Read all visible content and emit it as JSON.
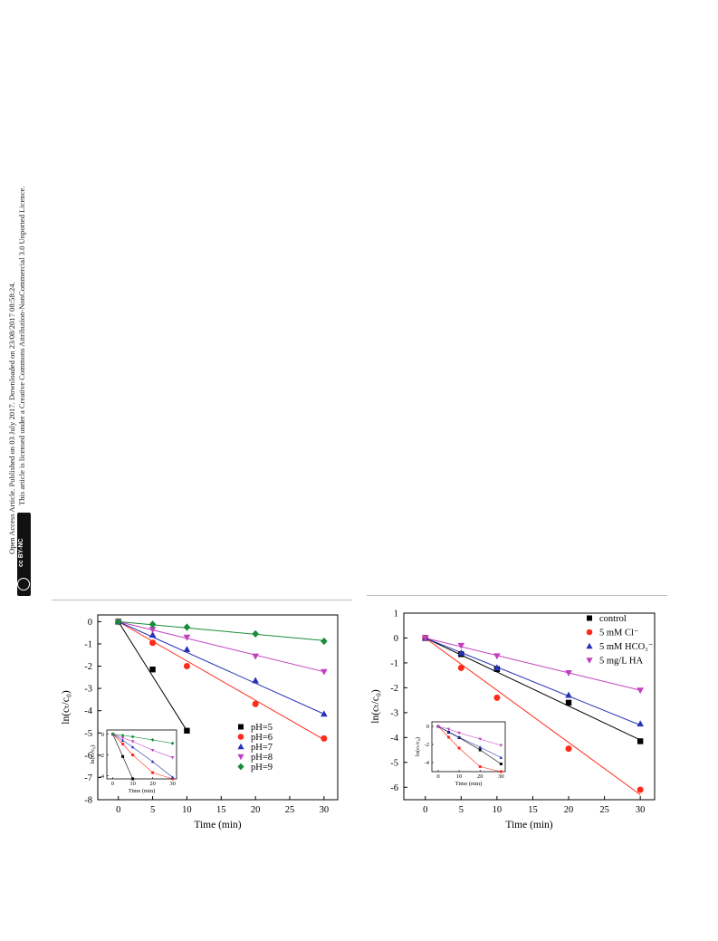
{
  "sidebar": {
    "line1": "Open Access Article. Published on 03 July 2017. Downloaded on 23/08/2017 08:58:24.",
    "line2": "This article is licensed under a Creative Commons Attribution-NonCommercial 3.0 Unported Licence.",
    "badge": "cc BY-NC"
  },
  "chart_data": [
    {
      "type": "scatter",
      "xlabel": "Time (min)",
      "ylabel": "ln(cₜ/c₀)",
      "xlim": [
        -3,
        32
      ],
      "ylim": [
        -8,
        0.3
      ],
      "xticks": [
        0,
        5,
        10,
        15,
        20,
        25,
        30
      ],
      "yticks": [
        0,
        -1,
        -2,
        -3,
        -4,
        -5,
        -6,
        -7,
        -8
      ],
      "legend_position": "lower-right",
      "series": [
        {
          "name": "pH=5",
          "color": "#000000",
          "marker": "square",
          "x": [
            0,
            5,
            10
          ],
          "y": [
            0,
            -2.15,
            -4.9
          ],
          "fit": [
            [
              0,
              0
            ],
            [
              10,
              -4.9
            ]
          ]
        },
        {
          "name": "pH=6",
          "color": "#ff2a1a",
          "marker": "circle",
          "x": [
            0,
            5,
            10,
            20,
            30
          ],
          "y": [
            0,
            -0.95,
            -2.0,
            -3.7,
            -5.25
          ],
          "fit": [
            [
              0,
              0
            ],
            [
              30,
              -5.3
            ]
          ]
        },
        {
          "name": "pH=7",
          "color": "#2633b5",
          "marker": "triangle-up",
          "x": [
            0,
            5,
            10,
            20,
            30
          ],
          "y": [
            0,
            -0.6,
            -1.25,
            -2.65,
            -4.15
          ],
          "fit": [
            [
              0,
              0
            ],
            [
              30,
              -4.15
            ]
          ]
        },
        {
          "name": "pH=8",
          "color": "#c040c0",
          "marker": "triangle-down",
          "x": [
            0,
            5,
            10,
            20,
            30
          ],
          "y": [
            0,
            -0.35,
            -0.7,
            -1.55,
            -2.25
          ],
          "fit": [
            [
              0,
              0
            ],
            [
              30,
              -2.25
            ]
          ]
        },
        {
          "name": "pH=9",
          "color": "#1a8c3a",
          "marker": "diamond",
          "x": [
            0,
            5,
            10,
            20,
            30
          ],
          "y": [
            0,
            -0.12,
            -0.25,
            -0.55,
            -0.88
          ],
          "fit": [
            [
              0,
              0
            ],
            [
              30,
              -0.85
            ]
          ]
        }
      ],
      "inset": {
        "xlabel": "Time (min)",
        "ylabel": "ln(cₜ/c₀)",
        "xticks": [
          0,
          10,
          20,
          30
        ],
        "yticks": [
          0,
          -2,
          -4
        ],
        "xlim": [
          -3,
          32
        ],
        "ylim": [
          -4.3,
          0.4
        ]
      }
    },
    {
      "type": "scatter",
      "xlabel": "Time (min)",
      "ylabel": "ln(cₜ/c₀)",
      "xlim": [
        -3,
        32
      ],
      "ylim": [
        -6.5,
        1
      ],
      "xticks": [
        0,
        5,
        10,
        15,
        20,
        25,
        30
      ],
      "yticks": [
        1,
        0,
        -1,
        -2,
        -3,
        -4,
        -5,
        -6
      ],
      "legend_position": "top-right",
      "series": [
        {
          "name": "control",
          "color": "#000000",
          "marker": "square",
          "x": [
            0,
            5,
            10,
            20,
            30
          ],
          "y": [
            0,
            -0.65,
            -1.25,
            -2.6,
            -4.15
          ],
          "fit": [
            [
              0,
              0
            ],
            [
              30,
              -4.1
            ]
          ]
        },
        {
          "name": "5 mM Cl⁻",
          "color": "#ff2a1a",
          "marker": "circle",
          "x": [
            0,
            5,
            10,
            20,
            30
          ],
          "y": [
            0,
            -1.2,
            -2.4,
            -4.45,
            -6.1
          ],
          "fit": [
            [
              0,
              0
            ],
            [
              30,
              -6.3
            ]
          ]
        },
        {
          "name": "5 mM HCO₃⁻",
          "color": "#2633b5",
          "marker": "triangle-up",
          "x": [
            0,
            5,
            10,
            20,
            30
          ],
          "y": [
            0,
            -0.6,
            -1.2,
            -2.3,
            -3.45
          ],
          "fit": [
            [
              0,
              0
            ],
            [
              30,
              -3.5
            ]
          ]
        },
        {
          "name": "5 mg/L HA",
          "color": "#c040c0",
          "marker": "triangle-down",
          "x": [
            0,
            5,
            10,
            20,
            30
          ],
          "y": [
            0,
            -0.3,
            -0.72,
            -1.4,
            -2.1
          ],
          "fit": [
            [
              0,
              0
            ],
            [
              30,
              -2.1
            ]
          ]
        }
      ],
      "inset": {
        "xlabel": "Time (min)",
        "ylabel": "ln(cₜ/c₀)",
        "xticks": [
          0,
          10,
          20,
          30
        ],
        "yticks": [
          0,
          -2,
          -4
        ],
        "xlim": [
          -3,
          32
        ],
        "ylim": [
          -5,
          0.5
        ]
      }
    }
  ]
}
